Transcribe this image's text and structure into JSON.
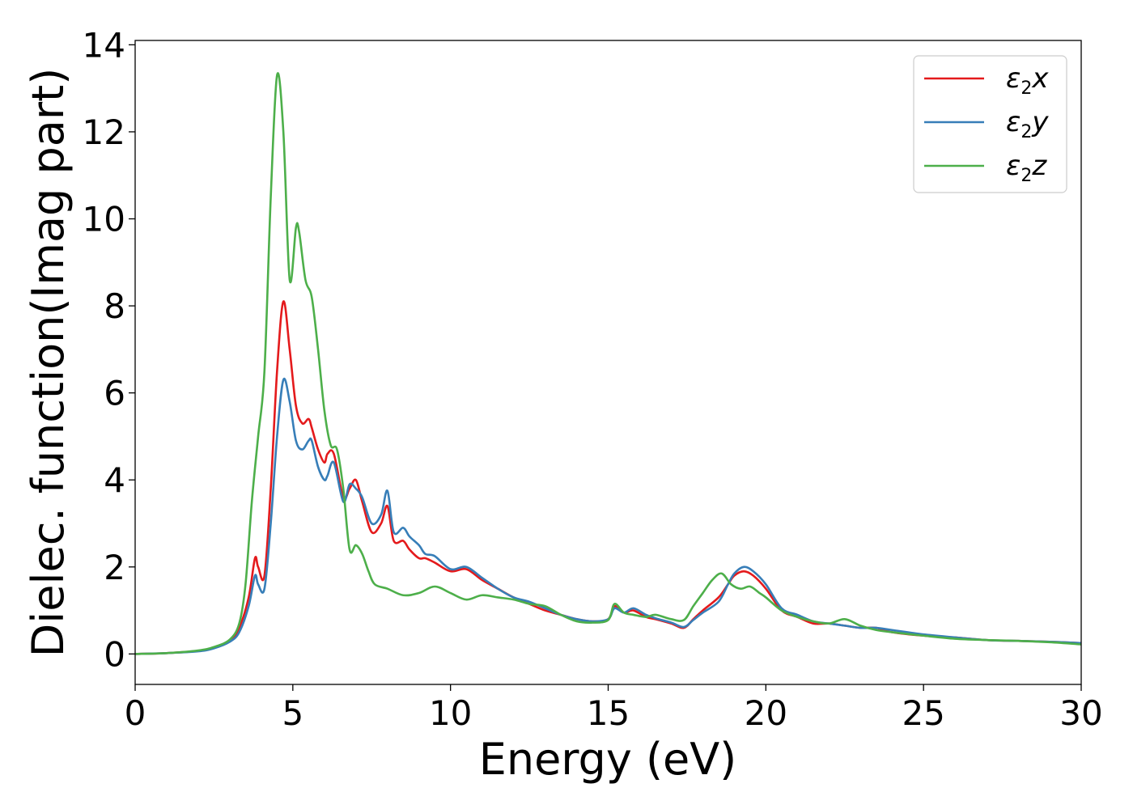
{
  "chart_data": {
    "type": "line",
    "xlabel": "Energy (eV)",
    "ylabel": "Dielec. function(Imag part)",
    "xlim": [
      0,
      30
    ],
    "ylim": [
      -0.7,
      14.1
    ],
    "xticks": [
      0,
      5,
      10,
      15,
      20,
      25,
      30
    ],
    "yticks": [
      0,
      2,
      4,
      6,
      8,
      10,
      12,
      14
    ],
    "xtick_labels": [
      "0",
      "5",
      "10",
      "15",
      "20",
      "25",
      "30"
    ],
    "ytick_labels": [
      "0",
      "2",
      "4",
      "6",
      "8",
      "10",
      "12",
      "14"
    ],
    "grid": false,
    "legend_position": "top-right",
    "series": [
      {
        "name": "ε2x",
        "legend_base": "ε",
        "legend_sub": "2",
        "legend_var": "x",
        "color": "#e41a1c",
        "x": [
          0,
          1,
          2,
          2.5,
          3,
          3.3,
          3.6,
          3.8,
          3.9,
          4.1,
          4.3,
          4.5,
          4.7,
          4.9,
          5.1,
          5.3,
          5.5,
          5.6,
          5.8,
          6.0,
          6.1,
          6.3,
          6.6,
          6.8,
          7.0,
          7.2,
          7.5,
          7.8,
          8.0,
          8.2,
          8.5,
          8.7,
          9.0,
          9.2,
          9.5,
          10.0,
          10.5,
          11.0,
          11.5,
          12.0,
          12.5,
          13.0,
          13.5,
          14.0,
          14.5,
          15.0,
          15.2,
          15.5,
          15.8,
          16.2,
          16.5,
          17.0,
          17.4,
          17.7,
          18.0,
          18.5,
          18.8,
          19.0,
          19.3,
          19.6,
          20.0,
          20.5,
          21.0,
          21.5,
          22.0,
          22.5,
          23.0,
          23.5,
          24.0,
          25.0,
          26.0,
          27.0,
          28.0,
          29.0,
          30.0
        ],
        "values": [
          0,
          0.02,
          0.07,
          0.15,
          0.3,
          0.6,
          1.3,
          2.2,
          2.0,
          1.8,
          3.8,
          6.5,
          8.1,
          7.0,
          5.7,
          5.3,
          5.4,
          5.2,
          4.7,
          4.4,
          4.6,
          4.6,
          3.6,
          3.8,
          4.0,
          3.5,
          2.8,
          3.0,
          3.4,
          2.6,
          2.6,
          2.4,
          2.2,
          2.2,
          2.1,
          1.9,
          1.95,
          1.7,
          1.5,
          1.3,
          1.15,
          1.0,
          0.9,
          0.8,
          0.75,
          0.8,
          1.1,
          0.95,
          1.0,
          0.85,
          0.8,
          0.7,
          0.6,
          0.8,
          1.0,
          1.3,
          1.6,
          1.8,
          1.9,
          1.8,
          1.5,
          1.0,
          0.85,
          0.7,
          0.7,
          0.65,
          0.6,
          0.6,
          0.5,
          0.42,
          0.38,
          0.32,
          0.3,
          0.28,
          0.25
        ]
      },
      {
        "name": "ε2y",
        "legend_base": "ε",
        "legend_sub": "2",
        "legend_var": "y",
        "color": "#377eb8",
        "x": [
          0,
          1,
          2,
          2.5,
          3,
          3.3,
          3.6,
          3.8,
          3.9,
          4.1,
          4.3,
          4.5,
          4.7,
          4.9,
          5.1,
          5.3,
          5.5,
          5.6,
          5.8,
          6.0,
          6.1,
          6.3,
          6.6,
          6.8,
          7.0,
          7.2,
          7.5,
          7.8,
          8.0,
          8.2,
          8.5,
          8.7,
          9.0,
          9.2,
          9.5,
          10.0,
          10.5,
          11.0,
          11.5,
          12.0,
          12.5,
          13.0,
          13.5,
          14.0,
          14.5,
          15.0,
          15.2,
          15.5,
          15.8,
          16.2,
          16.5,
          17.0,
          17.4,
          17.7,
          18.0,
          18.5,
          18.8,
          19.0,
          19.3,
          19.6,
          20.0,
          20.5,
          21.0,
          21.5,
          22.0,
          22.5,
          23.0,
          23.5,
          24.0,
          25.0,
          26.0,
          27.0,
          28.0,
          29.0,
          30.0
        ],
        "values": [
          0,
          0.02,
          0.06,
          0.13,
          0.28,
          0.5,
          1.1,
          1.8,
          1.6,
          1.5,
          3.0,
          5.0,
          6.3,
          5.8,
          4.9,
          4.7,
          4.9,
          4.9,
          4.3,
          4.0,
          4.1,
          4.4,
          3.5,
          3.9,
          3.8,
          3.6,
          3.0,
          3.2,
          3.75,
          2.8,
          2.9,
          2.7,
          2.5,
          2.3,
          2.25,
          1.95,
          2.0,
          1.75,
          1.5,
          1.3,
          1.2,
          1.05,
          0.9,
          0.8,
          0.75,
          0.8,
          1.05,
          0.95,
          1.05,
          0.9,
          0.82,
          0.72,
          0.62,
          0.78,
          0.95,
          1.2,
          1.6,
          1.85,
          2.0,
          1.9,
          1.6,
          1.05,
          0.9,
          0.75,
          0.7,
          0.65,
          0.6,
          0.6,
          0.55,
          0.45,
          0.38,
          0.32,
          0.3,
          0.28,
          0.25
        ]
      },
      {
        "name": "ε2z",
        "legend_base": "ε",
        "legend_sub": "2",
        "legend_var": "z",
        "color": "#4daf4a",
        "x": [
          0,
          1,
          2,
          2.5,
          3,
          3.3,
          3.5,
          3.7,
          3.9,
          4.1,
          4.3,
          4.5,
          4.7,
          4.9,
          5.1,
          5.2,
          5.4,
          5.6,
          5.8,
          6.0,
          6.2,
          6.4,
          6.6,
          6.8,
          7.0,
          7.2,
          7.4,
          7.6,
          8.0,
          8.5,
          9.0,
          9.5,
          10.0,
          10.5,
          11.0,
          11.5,
          12.0,
          12.5,
          13.0,
          13.5,
          14.0,
          14.5,
          15.0,
          15.2,
          15.5,
          15.8,
          16.2,
          16.5,
          17.0,
          17.4,
          17.7,
          18.0,
          18.3,
          18.6,
          18.9,
          19.2,
          19.5,
          19.8,
          20.0,
          20.5,
          21.0,
          21.5,
          22.0,
          22.5,
          23.0,
          23.5,
          24.0,
          25.0,
          26.0,
          27.0,
          28.0,
          29.0,
          30.0
        ],
        "values": [
          0,
          0.02,
          0.08,
          0.16,
          0.33,
          0.7,
          1.6,
          3.5,
          5.0,
          6.5,
          10.5,
          13.3,
          12.0,
          8.6,
          9.8,
          9.7,
          8.6,
          8.2,
          7.0,
          5.6,
          4.8,
          4.7,
          3.8,
          2.4,
          2.5,
          2.3,
          1.9,
          1.6,
          1.5,
          1.35,
          1.4,
          1.55,
          1.4,
          1.25,
          1.35,
          1.3,
          1.25,
          1.15,
          1.1,
          0.9,
          0.75,
          0.72,
          0.78,
          1.15,
          0.95,
          0.9,
          0.85,
          0.9,
          0.8,
          0.78,
          1.1,
          1.4,
          1.7,
          1.85,
          1.6,
          1.5,
          1.55,
          1.4,
          1.3,
          1.0,
          0.85,
          0.75,
          0.7,
          0.8,
          0.65,
          0.55,
          0.5,
          0.42,
          0.35,
          0.32,
          0.3,
          0.27,
          0.22
        ]
      }
    ]
  }
}
